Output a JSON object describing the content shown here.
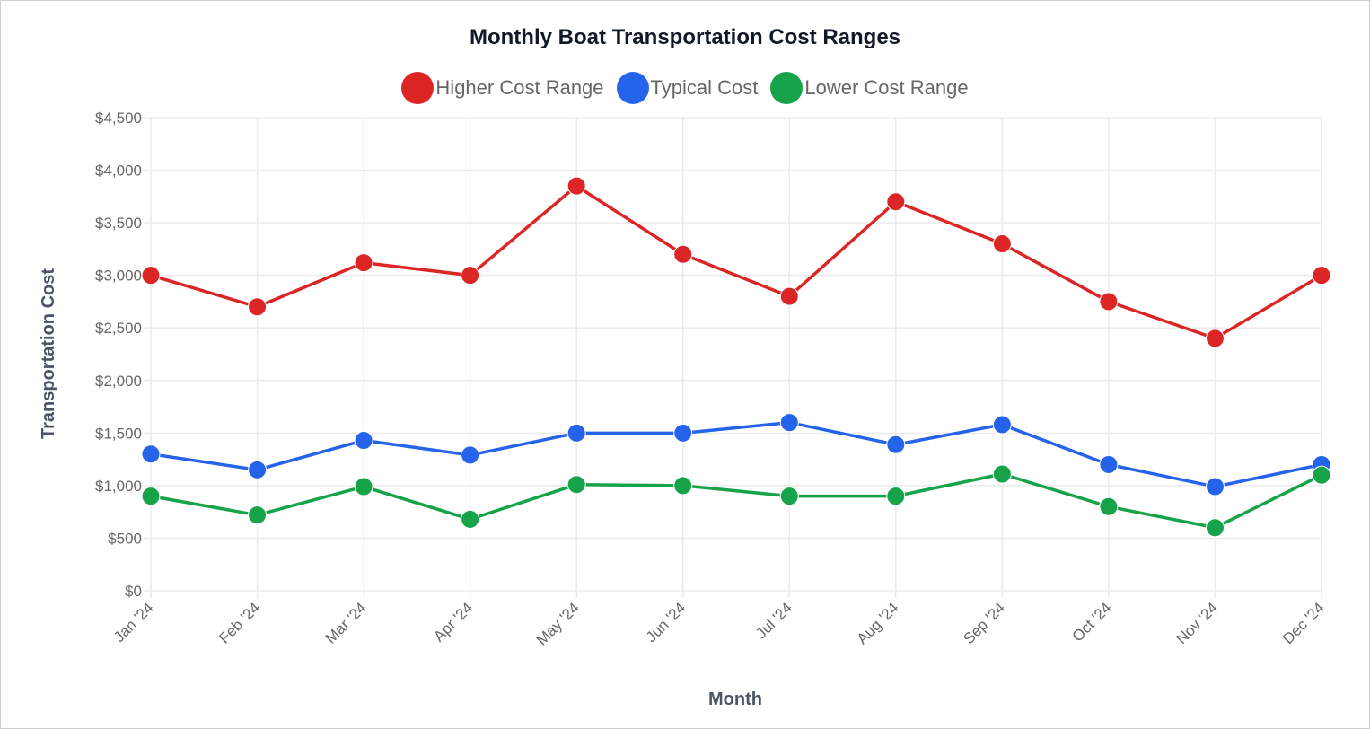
{
  "chart_data": {
    "type": "line",
    "title": "Monthly Boat Transportation Cost Ranges",
    "xlabel": "Month",
    "ylabel": "Transportation Cost",
    "categories": [
      "Jan '24",
      "Feb '24",
      "Mar '24",
      "Apr '24",
      "May '24",
      "Jun '24",
      "Jul '24",
      "Aug '24",
      "Sep '24",
      "Oct '24",
      "Nov '24",
      "Dec '24"
    ],
    "y_ticks": [
      "$0",
      "$500",
      "$1,000",
      "$1,500",
      "$2,000",
      "$2,500",
      "$3,000",
      "$3,500",
      "$4,000",
      "$4,500"
    ],
    "ylim": [
      0,
      4500
    ],
    "grid": true,
    "legend_position": "top",
    "series": [
      {
        "name": "Higher Cost Range",
        "color": "#dc2626",
        "values": [
          3000,
          2700,
          3120,
          3000,
          3850,
          3200,
          2800,
          3700,
          3300,
          2750,
          2400,
          3000
        ]
      },
      {
        "name": "Typical Cost",
        "color": "#2563eb",
        "values": [
          1300,
          1150,
          1430,
          1290,
          1500,
          1500,
          1600,
          1390,
          1580,
          1200,
          990,
          1200
        ]
      },
      {
        "name": "Lower Cost Range",
        "color": "#16a34a",
        "values": [
          900,
          720,
          990,
          680,
          1010,
          1000,
          900,
          900,
          1110,
          800,
          600,
          1100
        ]
      }
    ]
  }
}
